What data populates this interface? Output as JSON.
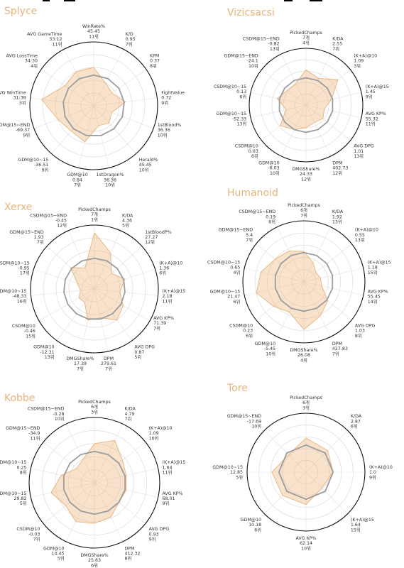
{
  "chart_data": [
    {
      "type": "radar",
      "title": "Splyce",
      "axes": [
        {
          "name": "WinRate%",
          "value": "45.45",
          "rank": "11위"
        },
        {
          "name": "K/D",
          "value": "0.95",
          "rank": "7위"
        },
        {
          "name": "KPM",
          "value": "0.37",
          "rank": "8위"
        },
        {
          "name": "FightValue",
          "value": "0.72",
          "rank": "9위"
        },
        {
          "name": "1stBlood%",
          "value": "36.36",
          "rank": "10위"
        },
        {
          "name": "Herald%",
          "value": "45.45",
          "rank": "10위"
        },
        {
          "name": "1stDragon%",
          "value": "36.36",
          "rank": "10위"
        },
        {
          "name": "GDM@10",
          "value": "0.84",
          "rank": "7위"
        },
        {
          "name": "GDM@10~15",
          "value": "-36.51",
          "rank": "9위"
        },
        {
          "name": "GDM@15~END",
          "value": "-69.37",
          "rank": "9위"
        },
        {
          "name": "AVG WinTime",
          "value": "31:38",
          "rank": "3위"
        },
        {
          "name": "AVG LossTime",
          "value": "34:30",
          "rank": "4위"
        },
        {
          "name": "AVG GameTime",
          "value": "33:12",
          "rank": "11위"
        }
      ],
      "series": [
        {
          "values": [
            0.6,
            0.4,
            0.35,
            0.5,
            0.3,
            0.36,
            0.32,
            0.58,
            0.53,
            0.6,
            0.82,
            0.55,
            0.6
          ]
        },
        {
          "values": [
            0.48,
            0.48,
            0.48,
            0.48,
            0.48,
            0.48,
            0.48,
            0.48,
            0.48,
            0.48,
            0.48,
            0.48,
            0.48
          ]
        }
      ]
    },
    {
      "type": "radar",
      "title": "Vizicsacsi",
      "axes": [
        {
          "name": "PickedChamps",
          "value": "7개",
          "rank": "4위"
        },
        {
          "name": "K/DA",
          "value": "2.55",
          "rank": "7위"
        },
        {
          "name": "(K+A)@10",
          "value": "1.09",
          "rank": "3위"
        },
        {
          "name": "(K+A)@15",
          "value": "1.45",
          "rank": "9위"
        },
        {
          "name": "AVG KP%",
          "value": "55.32",
          "rank": "11위"
        },
        {
          "name": "AVG DPG",
          "value": "1.01",
          "rank": "13위"
        },
        {
          "name": "DPM",
          "value": "402.73",
          "rank": "12위"
        },
        {
          "name": "DMGShare%",
          "value": "24.33",
          "rank": "12위"
        },
        {
          "name": "GDM@10",
          "value": "-6.03",
          "rank": "10위"
        },
        {
          "name": "CSDM@10",
          "value": "0.03",
          "rank": "6위"
        },
        {
          "name": "GDM@10~15",
          "value": "-52.33",
          "rank": "13위"
        },
        {
          "name": "CSDM@10~15",
          "value": "0.13",
          "rank": "6위"
        },
        {
          "name": "GDM@15~END",
          "value": "-24.1",
          "rank": "10위"
        },
        {
          "name": "CSDM@15~END",
          "value": "-0.82",
          "rank": "13위"
        }
      ],
      "series": [
        {
          "values": [
            0.62,
            0.52,
            0.72,
            0.46,
            0.33,
            0.38,
            0.34,
            0.4,
            0.48,
            0.58,
            0.36,
            0.52,
            0.42,
            0.42
          ]
        },
        {
          "values": [
            0.48,
            0.48,
            0.48,
            0.48,
            0.48,
            0.48,
            0.48,
            0.48,
            0.48,
            0.48,
            0.48,
            0.48,
            0.48,
            0.48
          ]
        }
      ]
    },
    {
      "type": "radar",
      "title": "Xerxe",
      "axes": [
        {
          "name": "PickedChamps",
          "value": "7개",
          "rank": "1위"
        },
        {
          "name": "K/DA",
          "value": "4.36",
          "rank": "5위"
        },
        {
          "name": "1stBloodP%",
          "value": "27.27",
          "rank": "12위"
        },
        {
          "name": "(K+A)@10",
          "value": "1.36",
          "rank": "6위"
        },
        {
          "name": "(K+A)@15",
          "value": "2.18",
          "rank": "11위"
        },
        {
          "name": "AVG KP%",
          "value": "71.39",
          "rank": "7위"
        },
        {
          "name": "AVG DPG",
          "value": "0.87",
          "rank": "5위"
        },
        {
          "name": "DPM",
          "value": "279.61",
          "rank": "7위"
        },
        {
          "name": "DMGShare%",
          "value": "17.39",
          "rank": "7위"
        },
        {
          "name": "GDM@10",
          "value": "-12.31",
          "rank": "13위"
        },
        {
          "name": "CSDM@10",
          "value": "-0.46",
          "rank": "15위"
        },
        {
          "name": "GDM@10~15",
          "value": "-48.33",
          "rank": "16위"
        },
        {
          "name": "CSDM@10~15",
          "value": "-0.95",
          "rank": "17위"
        },
        {
          "name": "GDM@15~END",
          "value": "1.93",
          "rank": "7위"
        },
        {
          "name": "CSDM@15~END",
          "value": "-0.45",
          "rank": "12위"
        }
      ],
      "series": [
        {
          "values": [
            0.88,
            0.62,
            0.36,
            0.5,
            0.4,
            0.52,
            0.6,
            0.46,
            0.5,
            0.26,
            0.28,
            0.22,
            0.28,
            0.5,
            0.36
          ]
        },
        {
          "values": [
            0.48,
            0.48,
            0.48,
            0.48,
            0.48,
            0.48,
            0.48,
            0.48,
            0.48,
            0.48,
            0.48,
            0.48,
            0.48,
            0.48,
            0.48
          ]
        }
      ]
    },
    {
      "type": "radar",
      "title": "Humanoid",
      "axes": [
        {
          "name": "PickedChamps",
          "value": "6개",
          "rank": "7위"
        },
        {
          "name": "K/DA",
          "value": "1.92",
          "rank": "13위"
        },
        {
          "name": "(K+A)@10",
          "value": "0.55",
          "rank": "13위"
        },
        {
          "name": "(K+A)@15",
          "value": "1.18",
          "rank": "15위"
        },
        {
          "name": "AVG KP%",
          "value": "55.45",
          "rank": "14위"
        },
        {
          "name": "AVG DPG",
          "value": "1.03",
          "rank": "8위"
        },
        {
          "name": "DPM",
          "value": "427.83",
          "rank": "7위"
        },
        {
          "name": "DMGShare%",
          "value": "26.08",
          "rank": "4위"
        },
        {
          "name": "GDM@10",
          "value": "-5.45",
          "rank": "10위"
        },
        {
          "name": "CSDM@10",
          "value": "0.23",
          "rank": "6위"
        },
        {
          "name": "GDM@10~15",
          "value": "21.47",
          "rank": "6위"
        },
        {
          "name": "CSDM@10~15",
          "value": "0.65",
          "rank": "4위"
        },
        {
          "name": "GDM@15~END",
          "value": "5.4",
          "rank": "7위"
        },
        {
          "name": "CSDM@15~END",
          "value": "0.19",
          "rank": "6위"
        }
      ],
      "series": [
        {
          "values": [
            0.5,
            0.35,
            0.25,
            0.28,
            0.3,
            0.5,
            0.62,
            0.78,
            0.55,
            0.64,
            0.8,
            0.72,
            0.6,
            0.56
          ]
        },
        {
          "values": [
            0.48,
            0.48,
            0.48,
            0.48,
            0.48,
            0.48,
            0.48,
            0.48,
            0.48,
            0.48,
            0.48,
            0.48,
            0.48,
            0.48
          ]
        }
      ]
    },
    {
      "type": "radar",
      "title": "Kobbe",
      "axes": [
        {
          "name": "PickedChamps",
          "value": "6개",
          "rank": "3위"
        },
        {
          "name": "K/DA",
          "value": "4.79",
          "rank": "7위"
        },
        {
          "name": "(K+A)@10",
          "value": "1.09",
          "rank": "10위"
        },
        {
          "name": "(K+A)@15",
          "value": "1.64",
          "rank": "11위"
        },
        {
          "name": "AVG KP%",
          "value": "68.01",
          "rank": "9위"
        },
        {
          "name": "AVG DPG",
          "value": "0.93",
          "rank": "9위"
        },
        {
          "name": "DPM",
          "value": "412.32",
          "rank": "8위"
        },
        {
          "name": "DMGShare%",
          "value": "25.63",
          "rank": "6위"
        },
        {
          "name": "GDM@10",
          "value": "14.45",
          "rank": "5위"
        },
        {
          "name": "CSDM@10",
          "value": "-0.03",
          "rank": "7위"
        },
        {
          "name": "GDM@10~15",
          "value": "29.82",
          "rank": "5위"
        },
        {
          "name": "CSDM@10~15",
          "value": "0.25",
          "rank": "8위"
        },
        {
          "name": "GDM@15~END",
          "value": "-34.9",
          "rank": "11위"
        },
        {
          "name": "CSDM@15~END",
          "value": "-0.28",
          "rank": "10위"
        }
      ],
      "series": [
        {
          "values": [
            0.6,
            0.72,
            0.55,
            0.5,
            0.5,
            0.48,
            0.58,
            0.62,
            0.66,
            0.56,
            0.68,
            0.52,
            0.35,
            0.4
          ]
        },
        {
          "values": [
            0.48,
            0.48,
            0.48,
            0.48,
            0.48,
            0.48,
            0.48,
            0.48,
            0.48,
            0.48,
            0.48,
            0.48,
            0.48,
            0.48
          ]
        }
      ]
    },
    {
      "type": "radar",
      "title": "Tore",
      "axes": [
        {
          "name": "PickedChamps",
          "value": "6개",
          "rank": "3위"
        },
        {
          "name": "K/DA",
          "value": "2.87",
          "rank": "6위"
        },
        {
          "name": "(K+A)@10",
          "value": "1.0",
          "rank": "9위"
        },
        {
          "name": "(K+A)@15",
          "value": "1.64",
          "rank": "15위"
        },
        {
          "name": "AVG KP%",
          "value": "62.14",
          "rank": "10위"
        },
        {
          "name": "GDM@10",
          "value": "10.18",
          "rank": "6위"
        },
        {
          "name": "GDM@10~15",
          "value": "12.85",
          "rank": "5위"
        },
        {
          "name": "GDM@15~END",
          "value": "-17.69",
          "rank": "10위"
        }
      ],
      "series": [
        {
          "values": [
            0.58,
            0.52,
            0.46,
            0.38,
            0.55,
            0.56,
            0.58,
            0.42
          ]
        },
        {
          "values": [
            0.46,
            0.46,
            0.46,
            0.46,
            0.46,
            0.46,
            0.46,
            0.46
          ]
        }
      ]
    }
  ]
}
